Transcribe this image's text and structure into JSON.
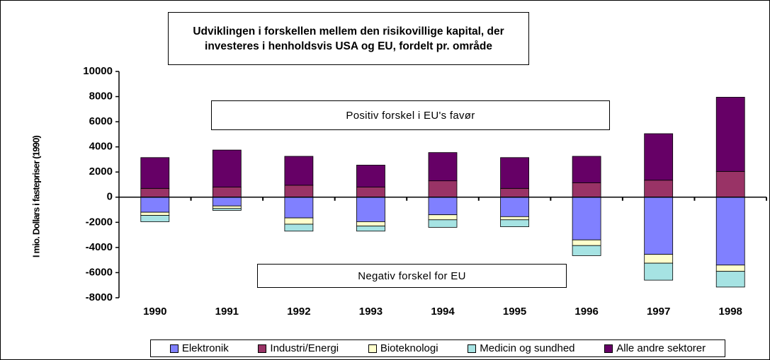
{
  "chart_data": {
    "type": "stacked-bar",
    "title": "Udviklingen i forskellen mellem den risikovillige kapital, der investeres i henholdsvis USA og EU, fordelt pr. område",
    "y_label": "I mio. Dollars i fastepriser (1990)",
    "annotations": [
      "Positiv forskel i EU's favør",
      "Negativ forskel for EU"
    ],
    "categories": [
      "1990",
      "1991",
      "1992",
      "1993",
      "1994",
      "1995",
      "1996",
      "1997",
      "1998"
    ],
    "series": [
      {
        "name": "Elektronik",
        "color": "#8080ff",
        "values": [
          -1200,
          -700,
          -1650,
          -1950,
          -1400,
          -1550,
          -3400,
          -4550,
          -5400
        ]
      },
      {
        "name": "Industri/Energi",
        "color": "#993366",
        "values": [
          700,
          800,
          950,
          800,
          1300,
          700,
          1150,
          1350,
          2050
        ]
      },
      {
        "name": "Bioteknologi",
        "color": "#ffffcc",
        "values": [
          -250,
          -200,
          -500,
          -350,
          -400,
          -250,
          -450,
          -700,
          -500
        ]
      },
      {
        "name": "Medicin og sundhed",
        "color": "#a6e3e3",
        "values": [
          -500,
          -150,
          -550,
          -400,
          -600,
          -550,
          -800,
          -1350,
          -1250
        ]
      },
      {
        "name": "Alle andre sektorer",
        "color": "#660066",
        "values": [
          2450,
          2950,
          2300,
          1750,
          2250,
          2450,
          2100,
          3700,
          5900
        ]
      }
    ],
    "ylim": [
      -8000,
      10000
    ],
    "yticks": [
      -8000,
      -6000,
      -4000,
      -2000,
      0,
      2000,
      4000,
      6000,
      8000,
      10000
    ],
    "legend": "bottom"
  }
}
